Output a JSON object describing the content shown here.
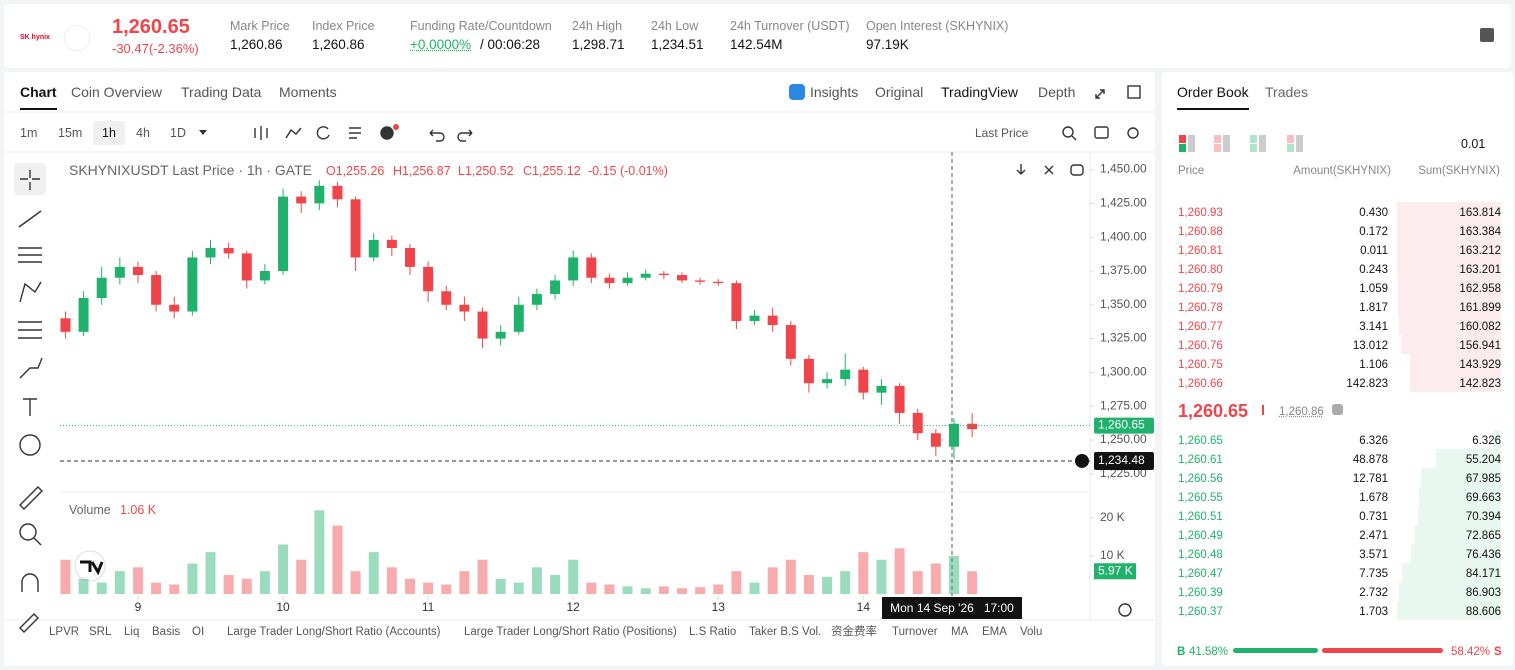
{
  "header": {
    "logo_text": "SK hynix",
    "price": "1,260.65",
    "change": "-30.47(-2.36%)",
    "stats": [
      {
        "label": "Mark Price",
        "value": "1,260.86"
      },
      {
        "label": "Index Price",
        "value": "1,260.86"
      },
      {
        "label": "Funding Rate/Countdown",
        "value": "+0.0000%",
        "extra": "/ 00:06:28"
      },
      {
        "label": "24h High",
        "value": "1,298.71"
      },
      {
        "label": "24h Low",
        "value": "1,234.51"
      },
      {
        "label": "24h Turnover (USDT)",
        "value": "142.54M"
      },
      {
        "label": "Open Interest (SKHYNIX)",
        "value": "97.19K"
      }
    ]
  },
  "chart_tabs": [
    "Chart",
    "Coin Overview",
    "Trading Data",
    "Moments"
  ],
  "view_tabs": [
    "Insights",
    "Original",
    "TradingView",
    "Depth"
  ],
  "intervals": [
    "1m",
    "15m",
    "1h",
    "4h",
    "1D"
  ],
  "price_source": "Last Price",
  "chart_data": {
    "type": "candlestick",
    "title": "SKHYNIXUSDT Last Price · 1h · GATE",
    "ohlc_legend": [
      "O1,255.26",
      "H1,256.87",
      "L1,250.52",
      "C1,255.12",
      "-0.15 (-0.01%)"
    ],
    "open": [
      1340,
      1330,
      1355,
      1370,
      1378,
      1372,
      1350,
      1345,
      1385,
      1392,
      1388,
      1368,
      1375,
      1430,
      1425,
      1438,
      1428,
      1385,
      1398,
      1392,
      1378,
      1360,
      1350,
      1345,
      1325,
      1330,
      1350,
      1358,
      1368,
      1385,
      1370,
      1366,
      1370,
      1373,
      1372,
      1368,
      1367,
      1366,
      1338,
      1342,
      1335,
      1310,
      1292,
      1295,
      1302,
      1285,
      1290,
      1270,
      1255,
      1245,
      1262
    ],
    "high": [
      1345,
      1360,
      1378,
      1385,
      1382,
      1375,
      1356,
      1390,
      1398,
      1396,
      1390,
      1380,
      1436,
      1434,
      1442,
      1441,
      1430,
      1403,
      1401,
      1395,
      1382,
      1364,
      1356,
      1348,
      1335,
      1356,
      1362,
      1372,
      1390,
      1388,
      1373,
      1374,
      1376,
      1375,
      1374,
      1370,
      1369,
      1368,
      1346,
      1348,
      1338,
      1313,
      1300,
      1314,
      1304,
      1295,
      1292,
      1273,
      1258,
      1266,
      1270
    ],
    "low": [
      1325,
      1327,
      1350,
      1365,
      1366,
      1345,
      1340,
      1342,
      1380,
      1384,
      1362,
      1365,
      1372,
      1418,
      1420,
      1422,
      1375,
      1382,
      1386,
      1372,
      1352,
      1346,
      1338,
      1318,
      1320,
      1328,
      1346,
      1354,
      1364,
      1366,
      1362,
      1364,
      1368,
      1369,
      1366,
      1365,
      1364,
      1332,
      1335,
      1330,
      1305,
      1285,
      1288,
      1290,
      1280,
      1276,
      1262,
      1250,
      1238,
      1236,
      1252
    ],
    "close": [
      1330,
      1355,
      1370,
      1378,
      1372,
      1350,
      1345,
      1385,
      1392,
      1388,
      1368,
      1375,
      1430,
      1425,
      1438,
      1428,
      1385,
      1398,
      1392,
      1378,
      1360,
      1350,
      1345,
      1325,
      1330,
      1350,
      1358,
      1368,
      1385,
      1370,
      1366,
      1370,
      1373,
      1372,
      1368,
      1367,
      1366,
      1338,
      1342,
      1335,
      1310,
      1292,
      1295,
      1302,
      1285,
      1290,
      1270,
      1255,
      1245,
      1262,
      1258
    ],
    "xlim": [
      -0.3,
      56.5
    ],
    "xticks": [
      {
        "value": 4,
        "label": "9"
      },
      {
        "value": 12,
        "label": "10"
      },
      {
        "value": 20,
        "label": "11"
      },
      {
        "value": 28,
        "label": "12"
      },
      {
        "value": 36,
        "label": "13"
      },
      {
        "value": 44,
        "label": "14"
      }
    ],
    "ylim": [
      1213,
      1463
    ],
    "yticks": [
      {
        "value": 1225,
        "label": "1,225.00"
      },
      {
        "value": 1250,
        "label": "1,250.00"
      },
      {
        "value": 1275,
        "label": "1,275.00"
      },
      {
        "value": 1300,
        "label": "1,300.00"
      },
      {
        "value": 1325,
        "label": "1,325.00"
      },
      {
        "value": 1350,
        "label": "1,350.00"
      },
      {
        "value": 1375,
        "label": "1,375.00"
      },
      {
        "value": 1400,
        "label": "1,400.00"
      },
      {
        "value": 1425,
        "label": "1,425.00"
      },
      {
        "value": 1450,
        "label": "1,450.00"
      }
    ],
    "up_color": "#20b26c",
    "down_color": "#ef454a",
    "last_price": {
      "value": 1260.65,
      "label": "1,260.65"
    },
    "cursor_price": {
      "value": 1234.48,
      "label": "1,234.48"
    },
    "crosshair_label": "Mon 14 Sep '26   17:00",
    "volume": {
      "title": "Volume",
      "current": "1.06 K",
      "values": [
        9000,
        4000,
        3000,
        6000,
        7000,
        3000,
        2500,
        8000,
        11000,
        5000,
        4000,
        6000,
        13000,
        9000,
        22000,
        18000,
        6000,
        11000,
        7000,
        4000,
        3000,
        2500,
        6000,
        9000,
        4000,
        3000,
        7000,
        5000,
        9000,
        3000,
        2500,
        2000,
        1500,
        2000,
        1500,
        1800,
        2500,
        6000,
        3000,
        7000,
        9000,
        5000,
        4500,
        6000,
        11000,
        9000,
        12000,
        6000,
        8000,
        10000,
        5970
      ],
      "ylim": [
        0,
        26000
      ],
      "yticks": [
        {
          "value": 10000,
          "label": "10 K"
        },
        {
          "value": 20000,
          "label": "20 K"
        }
      ],
      "last": {
        "value": 5970,
        "label": "5.97 K"
      }
    }
  },
  "indicators": [
    "LPVR",
    "SRL",
    "Liq",
    "Basis",
    "OI",
    "Large Trader Long/Short Ratio (Accounts)",
    "Large Trader Long/Short Ratio (Positions)",
    "L.S Ratio",
    "Taker B.S Vol.",
    "资金费率",
    "Turnover",
    "MA",
    "EMA",
    "Volu"
  ],
  "order_book": {
    "tabs": [
      "Order Book",
      "Trades"
    ],
    "precision": "0.01",
    "columns": [
      "Price",
      "Amount(SKHYNIX)",
      "Sum(SKHYNIX)"
    ],
    "asks": [
      {
        "price": "1,260.93",
        "amount": "0.430",
        "sum": 163.814
      },
      {
        "price": "1,260.88",
        "amount": "0.172",
        "sum": 163.384
      },
      {
        "price": "1,260.81",
        "amount": "0.011",
        "sum": 163.212
      },
      {
        "price": "1,260.80",
        "amount": "0.243",
        "sum": 163.201
      },
      {
        "price": "1,260.79",
        "amount": "1.059",
        "sum": 162.958
      },
      {
        "price": "1,260.78",
        "amount": "1.817",
        "sum": 161.899
      },
      {
        "price": "1,260.77",
        "amount": "3.141",
        "sum": 160.082
      },
      {
        "price": "1,260.76",
        "amount": "13.012",
        "sum": 156.941
      },
      {
        "price": "1,260.75",
        "amount": "1.106",
        "sum": 143.929
      },
      {
        "price": "1,260.66",
        "amount": "142.823",
        "sum": 142.823
      }
    ],
    "mid_price": "1,260.65",
    "mark_price": "1,260.86",
    "bids": [
      {
        "price": "1,260.65",
        "amount": "6.326",
        "sum": 6.326
      },
      {
        "price": "1,260.61",
        "amount": "48.878",
        "sum": 55.204
      },
      {
        "price": "1,260.56",
        "amount": "12.781",
        "sum": 67.985
      },
      {
        "price": "1,260.55",
        "amount": "1.678",
        "sum": 69.663
      },
      {
        "price": "1,260.51",
        "amount": "0.731",
        "sum": 70.394
      },
      {
        "price": "1,260.49",
        "amount": "2.471",
        "sum": 72.865
      },
      {
        "price": "1,260.48",
        "amount": "3.571",
        "sum": 76.436
      },
      {
        "price": "1,260.47",
        "amount": "7.735",
        "sum": 84.171
      },
      {
        "price": "1,260.39",
        "amount": "2.732",
        "sum": 86.903
      },
      {
        "price": "1,260.37",
        "amount": "1.703",
        "sum": 88.606
      }
    ],
    "buy_letter": "B",
    "sell_letter": "S",
    "buy_ratio": {
      "value": 41.58,
      "label": "41.58%"
    },
    "sell_ratio": {
      "value": 58.42,
      "label": "58.42%"
    }
  }
}
